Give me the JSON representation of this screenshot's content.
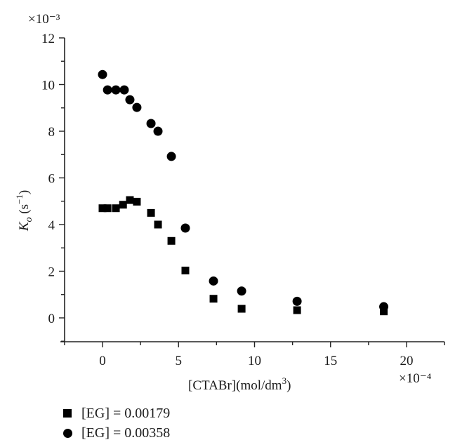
{
  "chart_data": {
    "type": "scatter",
    "title": "",
    "xlabel": "[CTABr](mol/dm³)",
    "xlabel_main": "[CTABr](mol/dm",
    "xlabel_sup": "3",
    "xlabel_tail": ")",
    "x_multiplier": "×10⁻⁴",
    "ylabel": "Ko (s⁻¹)",
    "y_multiplier": "×10⁻³",
    "xlim": [
      -2.5,
      22.5
    ],
    "ylim": [
      -1,
      12
    ],
    "x_ticks": [
      0,
      5,
      10,
      15,
      20
    ],
    "y_ticks": [
      0,
      2,
      4,
      6,
      8,
      10,
      12
    ],
    "grid": false,
    "legend_position": "below",
    "series": [
      {
        "name": "[EG] = 0.00179",
        "marker": "square",
        "x": [
          0,
          0.33,
          0.88,
          1.35,
          1.8,
          2.26,
          3.19,
          3.65,
          4.53,
          5.45,
          7.3,
          9.15,
          12.8,
          18.5
        ],
        "y": [
          4.7,
          4.7,
          4.7,
          4.85,
          5.05,
          4.98,
          4.5,
          4.0,
          3.3,
          2.03,
          0.82,
          0.39,
          0.33,
          0.28
        ]
      },
      {
        "name": "[EG] = 0.00358",
        "marker": "circle",
        "x": [
          0,
          0.33,
          0.88,
          1.43,
          1.8,
          2.26,
          3.19,
          3.65,
          4.53,
          5.45,
          7.3,
          9.15,
          12.8,
          18.5
        ],
        "y": [
          10.43,
          9.77,
          9.77,
          9.77,
          9.35,
          9.02,
          8.33,
          8.0,
          6.92,
          3.85,
          1.58,
          1.15,
          0.71,
          0.48
        ]
      }
    ]
  },
  "legend": {
    "items": [
      {
        "label": "[EG] = 0.00179",
        "marker": "square"
      },
      {
        "label": "[EG] = 0.00358",
        "marker": "circle"
      }
    ]
  }
}
